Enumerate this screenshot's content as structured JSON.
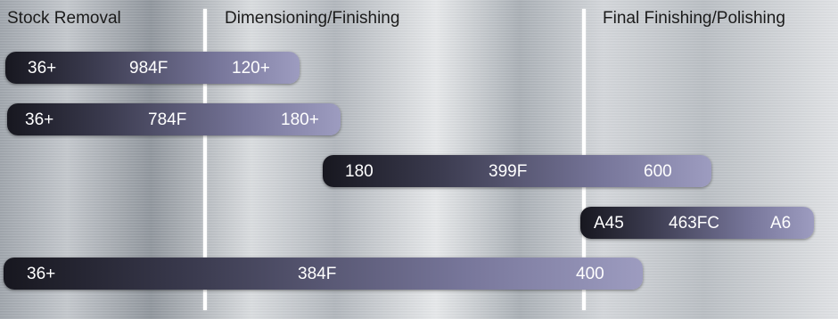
{
  "headers": {
    "stock_removal": "Stock Removal",
    "dimensioning": "Dimensioning/Finishing",
    "final_finishing": "Final Finishing/Polishing"
  },
  "bands": [
    {
      "start": "36+",
      "product": "984F",
      "end": "120+"
    },
    {
      "start": "36+",
      "product": "784F",
      "end": "180+"
    },
    {
      "start": "180",
      "product": "399F",
      "end": "600"
    },
    {
      "start": "A45",
      "product": "463FC",
      "end": "A6"
    },
    {
      "start": "36+",
      "product": "384F",
      "end": "400"
    }
  ]
}
